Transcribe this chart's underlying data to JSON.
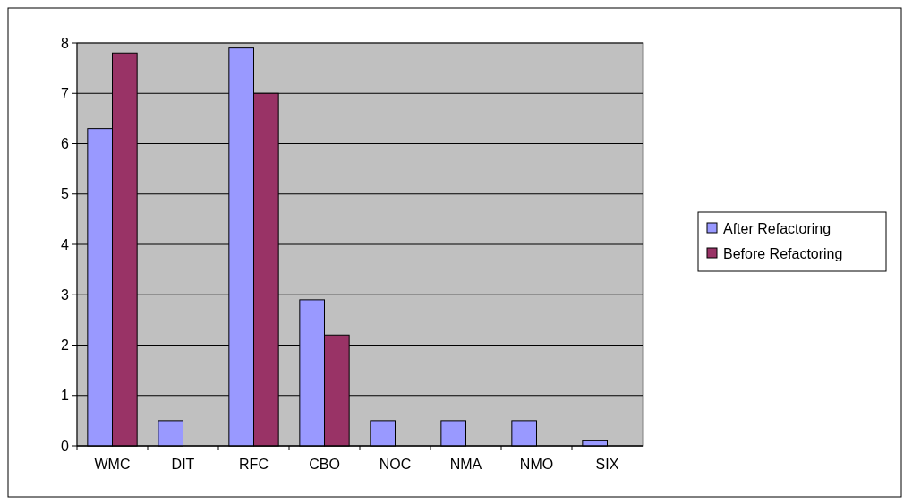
{
  "chart_data": {
    "type": "bar",
    "categories": [
      "WMC",
      "DIT",
      "RFC",
      "CBO",
      "NOC",
      "NMA",
      "NMO",
      "SIX"
    ],
    "series": [
      {
        "name": "After Refactoring",
        "color": "#9999ff",
        "values": [
          6.3,
          0.5,
          7.9,
          2.9,
          0.5,
          0.5,
          0.5,
          0.1
        ]
      },
      {
        "name": "Before Refactoring",
        "color": "#993366",
        "values": [
          7.8,
          0,
          7,
          2.2,
          0,
          0,
          0,
          0
        ]
      }
    ],
    "ylim": [
      0,
      8
    ],
    "yticks": [
      0,
      1,
      2,
      3,
      4,
      5,
      6,
      7,
      8
    ],
    "grid": "y",
    "legend": "right"
  }
}
